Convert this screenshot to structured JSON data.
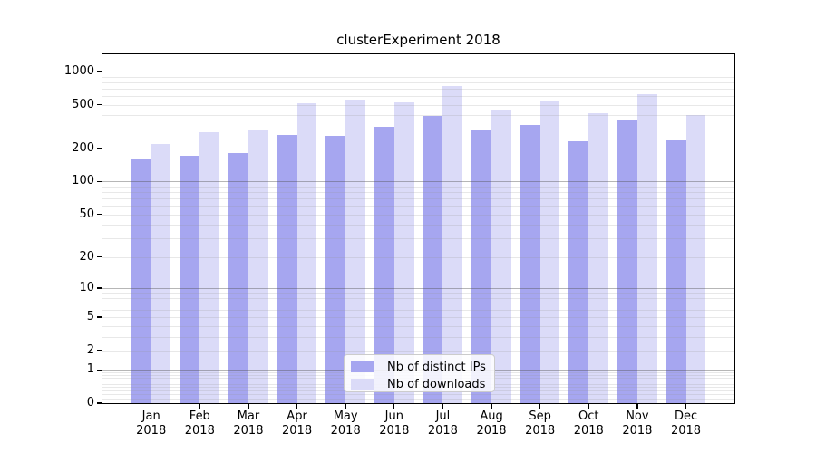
{
  "chart_data": {
    "type": "bar",
    "title": "clusterExperiment 2018",
    "categories": [
      "Jan",
      "Feb",
      "Mar",
      "Apr",
      "May",
      "Jun",
      "Jul",
      "Aug",
      "Sep",
      "Oct",
      "Nov",
      "Dec"
    ],
    "year_label": "2018",
    "series": [
      {
        "name": "Nb of distinct IPs",
        "color": "#a6a6f0",
        "values": [
          162,
          173,
          182,
          268,
          261,
          313,
          396,
          292,
          326,
          233,
          366,
          237
        ]
      },
      {
        "name": "Nb of downloads",
        "color": "#dbdbf8",
        "values": [
          220,
          283,
          290,
          514,
          559,
          522,
          733,
          452,
          546,
          415,
          623,
          405
        ]
      }
    ],
    "yscale": "log1p",
    "yticks": [
      0,
      1,
      2,
      5,
      10,
      20,
      50,
      100,
      200,
      500,
      1000
    ],
    "ylim": [
      0,
      1430
    ],
    "grid": "horizontal, minor and major decade lines, drawn above bars",
    "legend_position": "lower center"
  }
}
